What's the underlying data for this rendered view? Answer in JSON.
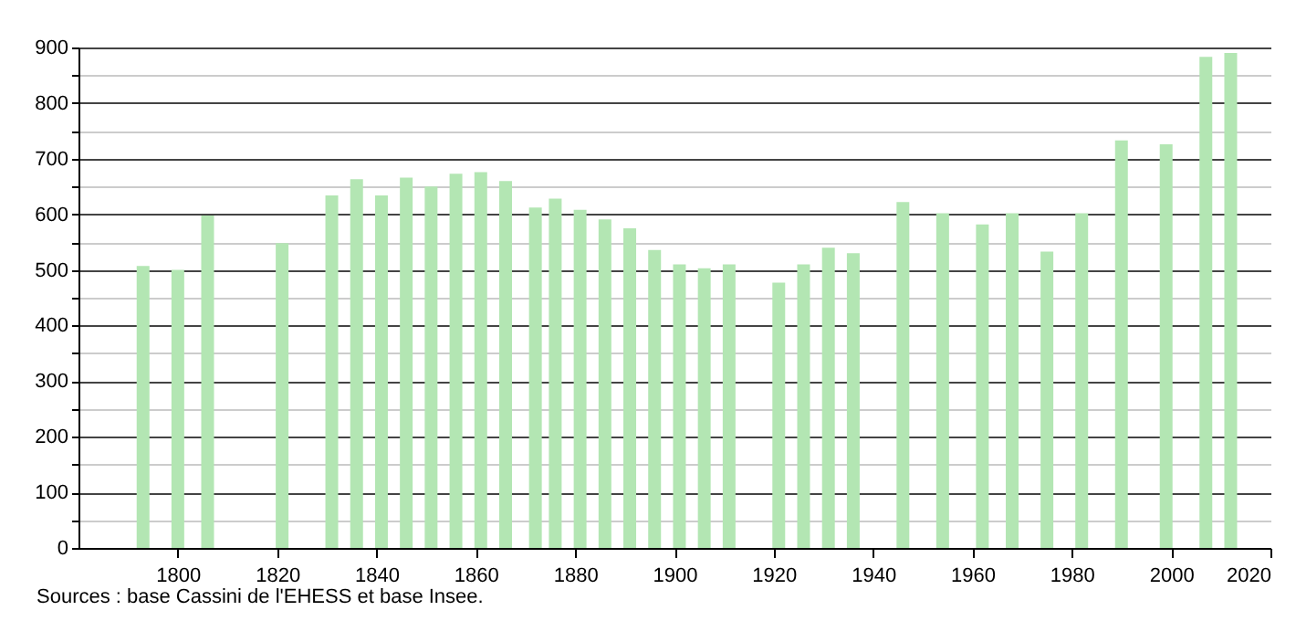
{
  "chart_data": {
    "type": "bar",
    "x": [
      1793,
      1800,
      1806,
      1821,
      1831,
      1836,
      1841,
      1846,
      1851,
      1856,
      1861,
      1866,
      1872,
      1876,
      1881,
      1886,
      1891,
      1896,
      1901,
      1906,
      1911,
      1921,
      1926,
      1931,
      1936,
      1946,
      1954,
      1962,
      1968,
      1975,
      1982,
      1990,
      1999,
      2007,
      2012
    ],
    "values": [
      507,
      500,
      598,
      548,
      634,
      663,
      634,
      666,
      650,
      673,
      676,
      660,
      612,
      628,
      608,
      591,
      575,
      536,
      510,
      503,
      510,
      477,
      510,
      540,
      530,
      622,
      602,
      582,
      602,
      533,
      602,
      733,
      726,
      883,
      890
    ],
    "color": "#b3e6b3",
    "xlim": [
      1780,
      2020
    ],
    "xticks": [
      1800,
      1820,
      1840,
      1860,
      1880,
      1900,
      1920,
      1940,
      1960,
      1980,
      2000,
      2020
    ],
    "ylim": [
      0,
      900
    ],
    "yticks": [
      0,
      {
        "value": 50,
        "label": null
      },
      100,
      {
        "value": 150,
        "label": null
      },
      200,
      {
        "value": 250,
        "label": null
      },
      300,
      {
        "value": 350,
        "label": null
      },
      400,
      {
        "value": 450,
        "label": null
      },
      500,
      {
        "value": 550,
        "label": null
      },
      600,
      {
        "value": 650,
        "label": null
      },
      700,
      {
        "value": 750,
        "label": null
      },
      800,
      {
        "value": 850,
        "label": null
      },
      900
    ],
    "grid": "y",
    "annotations": [
      "Sources : base Cassini de l'EHESS et base Insee."
    ]
  }
}
